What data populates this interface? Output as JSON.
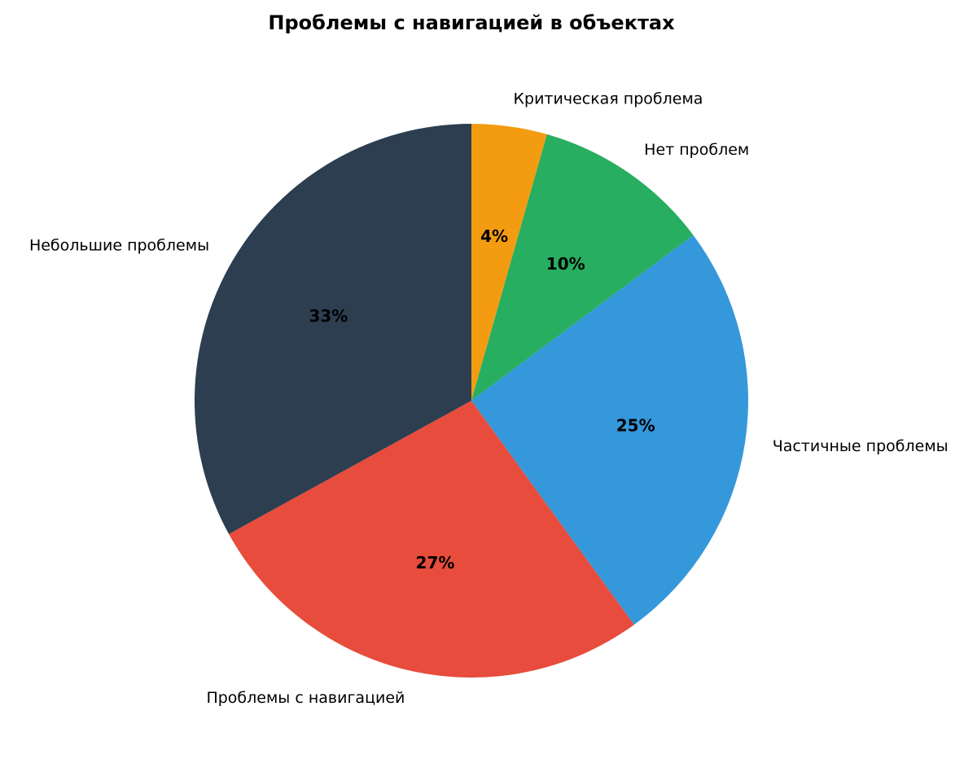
{
  "chart_data": {
    "type": "pie",
    "title": "Проблемы с навигацией в объектах",
    "start_angle_deg": 90,
    "direction": "clockwise",
    "slices": [
      {
        "label": "Критическая проблема",
        "value": 4.4,
        "pct_label": "4%",
        "color": "#f39c12"
      },
      {
        "label": "Нет проблем",
        "value": 10.4,
        "pct_label": "10%",
        "color": "#27ae60"
      },
      {
        "label": "Частичные проблемы",
        "value": 25.2,
        "pct_label": "25%",
        "color": "#3498db"
      },
      {
        "label": "Проблемы с навигацией",
        "value": 27.0,
        "pct_label": "27%",
        "color": "#e74c3c"
      },
      {
        "label": "Небольшие проблемы",
        "value": 33.0,
        "pct_label": "33%",
        "color": "#2c3e50"
      }
    ]
  }
}
